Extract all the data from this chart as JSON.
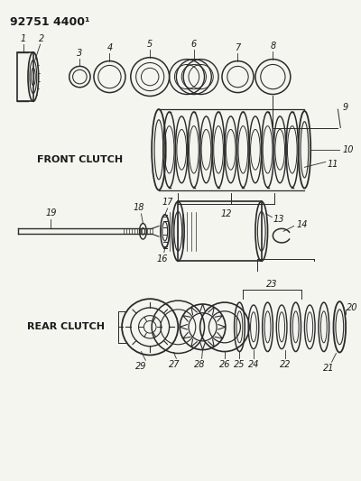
{
  "title": "92751 4400¹",
  "background_color": "#f5f5f0",
  "line_color": "#2a2a2a",
  "text_color": "#1a1a1a",
  "front_clutch_label": "FRONT CLUTCH",
  "rear_clutch_label": "REAR CLUTCH",
  "figsize": [
    4.0,
    5.33
  ],
  "dpi": 100
}
